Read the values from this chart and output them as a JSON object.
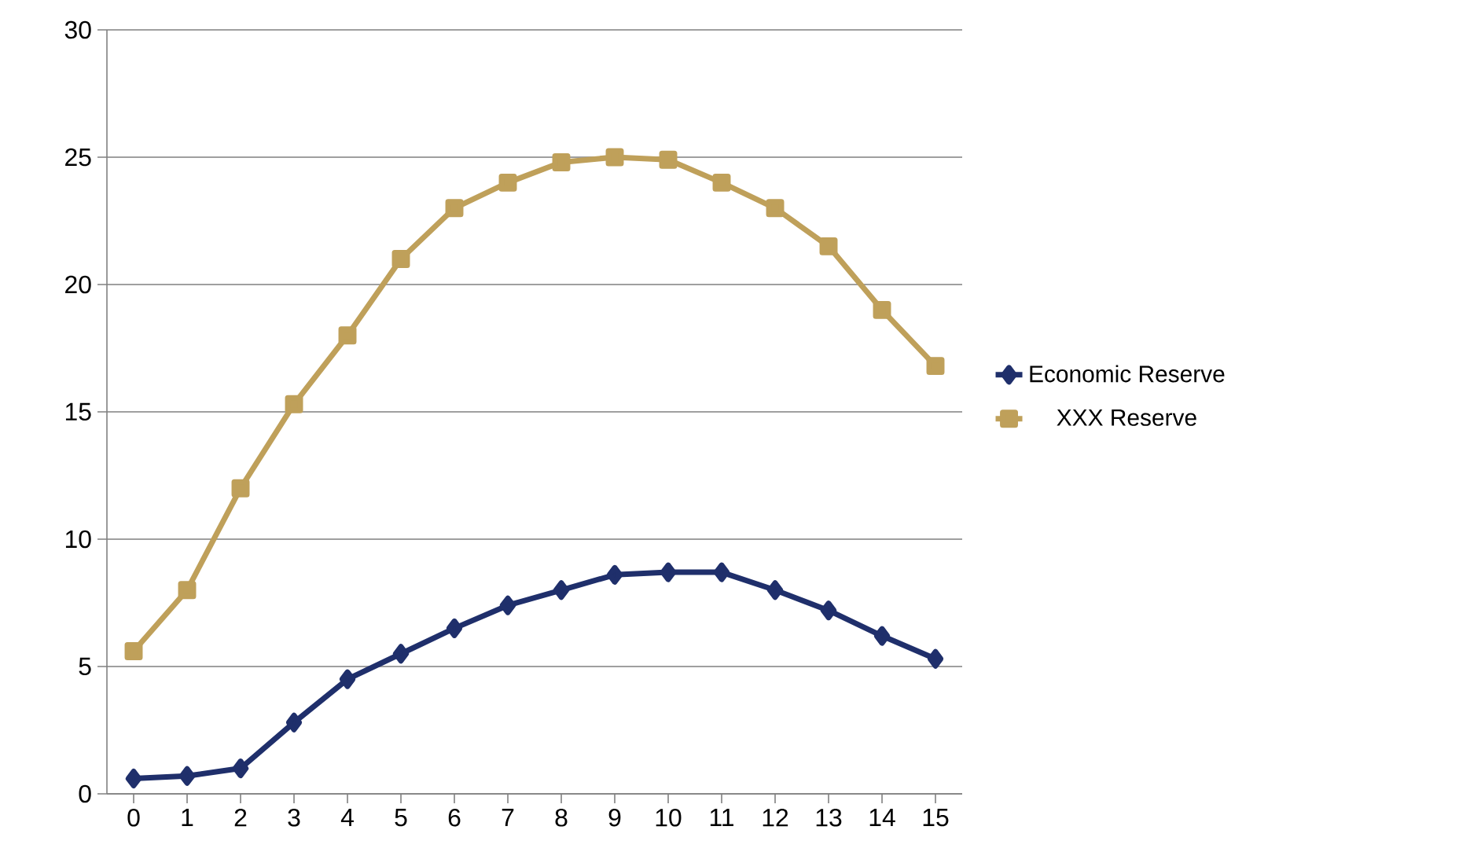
{
  "chart_data": {
    "type": "line",
    "categories": [
      "0",
      "1",
      "2",
      "3",
      "4",
      "5",
      "6",
      "7",
      "8",
      "9",
      "10",
      "11",
      "12",
      "13",
      "14",
      "15"
    ],
    "series": [
      {
        "name": "Economic Reserve",
        "color": "#1f2f6b",
        "marker": "diamond",
        "values": [
          0.6,
          0.7,
          1.0,
          2.8,
          4.5,
          5.5,
          6.5,
          7.4,
          8.0,
          8.6,
          8.7,
          8.7,
          8.0,
          7.2,
          6.2,
          5.3
        ]
      },
      {
        "name": "XXX Reserve",
        "color": "#bfa05a",
        "marker": "square",
        "values": [
          5.6,
          8.0,
          12.0,
          15.3,
          18.0,
          21.0,
          23.0,
          24.0,
          24.8,
          25.0,
          24.9,
          24.0,
          23.0,
          21.5,
          19.0,
          16.8
        ]
      }
    ],
    "ylim": [
      0,
      30
    ],
    "yticks": [
      0,
      5,
      10,
      15,
      20,
      25,
      30
    ],
    "grid": "y",
    "legend": "right",
    "line_style": "solid"
  }
}
